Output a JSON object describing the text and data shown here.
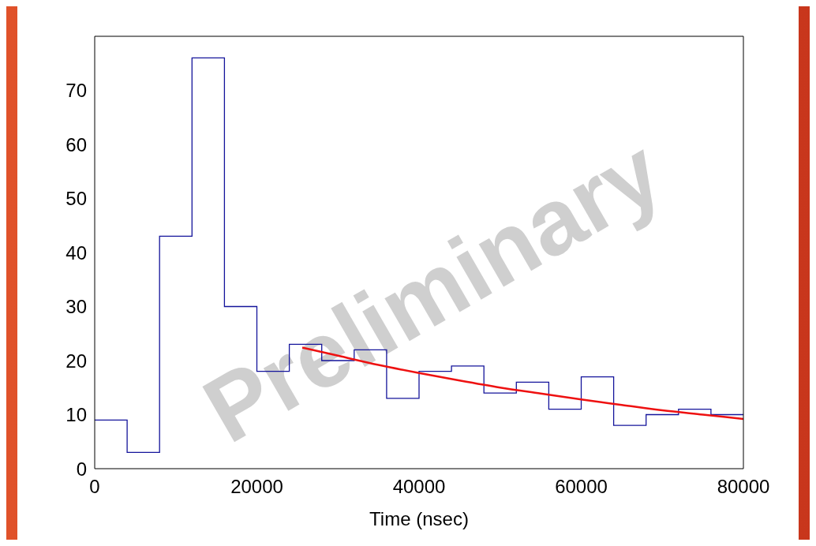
{
  "chart_data": {
    "type": "histogram",
    "xlabel": "Time (nsec)",
    "bins": [
      0,
      4000,
      8000,
      12000,
      16000,
      20000,
      24000,
      28000,
      32000,
      36000,
      40000,
      44000,
      48000,
      52000,
      56000,
      60000,
      64000,
      68000,
      72000,
      76000,
      80000
    ],
    "values": [
      9,
      3,
      43,
      76,
      30,
      18,
      23,
      20,
      22,
      13,
      18,
      19,
      14,
      16,
      11,
      17,
      8,
      10,
      11,
      10
    ],
    "color": "#14149b",
    "series": [
      {
        "type": "line",
        "color": "#ee1111",
        "x": [
          25600,
          30000,
          35000,
          40000,
          45000,
          50000,
          55000,
          60000,
          65000,
          70000,
          75000,
          80000
        ],
        "values": [
          22.4,
          20.9,
          19.2,
          17.7,
          16.3,
          15.0,
          13.9,
          12.8,
          11.8,
          10.8,
          10.0,
          9.2
        ]
      }
    ],
    "xlim": [
      0,
      80000
    ],
    "xticks": [
      0,
      20000,
      40000,
      60000,
      80000
    ],
    "ylim": [
      0,
      80
    ],
    "yticks": [
      0,
      10,
      20,
      30,
      40,
      50,
      60,
      70
    ],
    "marker": "none",
    "line_style": "solid",
    "annotations": [
      "Preliminary"
    ]
  }
}
